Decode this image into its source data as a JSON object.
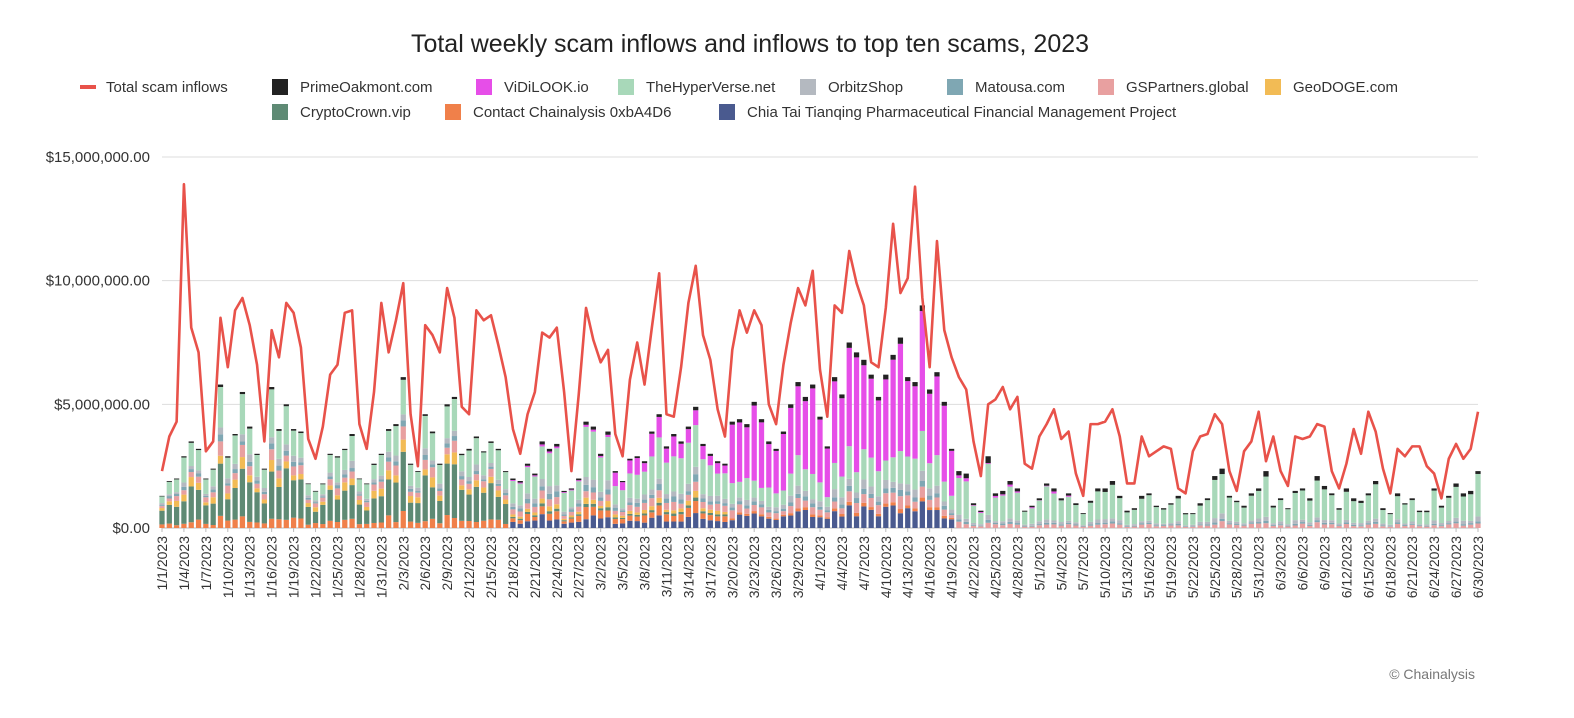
{
  "chart_data": {
    "type": "bar",
    "title": "Total weekly scam inflows and inflows to top ten scams, 2023",
    "credit": "© Chainalysis",
    "xlabel": "",
    "ylabel": "",
    "ylim": [
      0,
      15000000
    ],
    "y_ticks": [
      {
        "value": 0,
        "label": "$0.00"
      },
      {
        "value": 5000000,
        "label": "$5,000,000.00"
      },
      {
        "value": 10000000,
        "label": "$10,000,000.00"
      },
      {
        "value": 15000000,
        "label": "$15,000,000.00"
      }
    ],
    "x_tick_labels": [
      "1/1/2023",
      "1/4/2023",
      "1/7/2023",
      "1/10/2023",
      "1/13/2023",
      "1/16/2023",
      "1/19/2023",
      "1/22/2023",
      "1/25/2023",
      "1/28/2023",
      "1/31/2023",
      "2/3/2023",
      "2/6/2023",
      "2/9/2023",
      "2/12/2023",
      "2/15/2023",
      "2/18/2023",
      "2/21/2023",
      "2/24/2023",
      "2/27/2023",
      "3/2/2023",
      "3/5/2023",
      "3/8/2023",
      "3/11/2023",
      "3/14/2023",
      "3/17/2023",
      "3/20/2023",
      "3/23/2023",
      "3/26/2023",
      "3/29/2023",
      "4/1/2023",
      "4/4/2023",
      "4/7/2023",
      "4/10/2023",
      "4/13/2023",
      "4/16/2023",
      "4/19/2023",
      "4/22/2023",
      "4/25/2023",
      "4/28/2023",
      "5/1/2023",
      "5/4/2023",
      "5/7/2023",
      "5/10/2023",
      "5/13/2023",
      "5/16/2023",
      "5/19/2023",
      "5/22/2023",
      "5/25/2023",
      "5/28/2023",
      "5/31/2023",
      "6/3/2023",
      "6/6/2023",
      "6/9/2023",
      "6/12/2023",
      "6/15/2023",
      "6/18/2023",
      "6/21/2023",
      "6/24/2023",
      "6/27/2023",
      "6/30/2023"
    ],
    "start_date": "1/1/2023",
    "end_date": "6/30/2023",
    "line_series": {
      "name": "Total scam inflows",
      "color": "#e8524a",
      "key_points": [
        [
          1,
          2.3
        ],
        [
          2,
          3.7
        ],
        [
          3,
          4.3
        ],
        [
          4,
          13.9
        ],
        [
          5,
          8.1
        ],
        [
          6,
          7.1
        ],
        [
          7,
          3.1
        ],
        [
          8,
          3.5
        ],
        [
          9,
          8.5
        ],
        [
          10,
          6.5
        ],
        [
          11,
          8.8
        ],
        [
          12,
          9.3
        ],
        [
          13,
          8.2
        ],
        [
          14,
          6.6
        ],
        [
          15,
          3.5
        ],
        [
          16,
          8.0
        ],
        [
          17,
          6.9
        ],
        [
          18,
          9.1
        ],
        [
          19,
          8.7
        ],
        [
          20,
          7.3
        ],
        [
          21,
          3.6
        ],
        [
          22,
          2.8
        ],
        [
          23,
          4.1
        ],
        [
          24,
          6.2
        ],
        [
          25,
          6.6
        ],
        [
          26,
          8.7
        ],
        [
          27,
          8.8
        ],
        [
          28,
          4.2
        ],
        [
          29,
          3.2
        ],
        [
          30,
          5.5
        ],
        [
          31,
          9.1
        ],
        [
          32,
          7.1
        ],
        [
          33,
          8.4
        ],
        [
          34,
          9.9
        ],
        [
          35,
          4.6
        ],
        [
          36,
          2.5
        ],
        [
          37,
          8.2
        ],
        [
          38,
          7.8
        ],
        [
          39,
          7.1
        ],
        [
          40,
          9.7
        ],
        [
          41,
          8.5
        ],
        [
          42,
          4.9
        ],
        [
          43,
          4.6
        ],
        [
          44,
          8.8
        ],
        [
          45,
          8.4
        ],
        [
          46,
          8.6
        ],
        [
          47,
          7.4
        ],
        [
          48,
          6.1
        ],
        [
          49,
          4.0
        ],
        [
          50,
          3.0
        ],
        [
          51,
          4.6
        ],
        [
          52,
          5.5
        ],
        [
          53,
          7.9
        ],
        [
          54,
          7.7
        ],
        [
          55,
          8.1
        ],
        [
          56,
          5.5
        ],
        [
          57,
          2.3
        ],
        [
          58,
          5.4
        ],
        [
          59,
          8.9
        ],
        [
          60,
          7.6
        ],
        [
          61,
          6.7
        ],
        [
          62,
          7.2
        ],
        [
          63,
          3.8
        ],
        [
          64,
          2.9
        ],
        [
          65,
          6.0
        ],
        [
          66,
          7.5
        ],
        [
          67,
          5.8
        ],
        [
          68,
          8.1
        ],
        [
          69,
          10.3
        ],
        [
          70,
          4.6
        ],
        [
          71,
          4.5
        ],
        [
          72,
          6.5
        ],
        [
          73,
          9.1
        ],
        [
          74,
          10.6
        ],
        [
          75,
          7.8
        ],
        [
          76,
          6.8
        ],
        [
          77,
          4.8
        ],
        [
          78,
          3.7
        ],
        [
          79,
          7.2
        ],
        [
          80,
          8.8
        ],
        [
          81,
          7.9
        ],
        [
          82,
          8.8
        ],
        [
          83,
          8.2
        ],
        [
          84,
          5.0
        ],
        [
          85,
          4.2
        ],
        [
          86,
          6.6
        ],
        [
          87,
          8.3
        ],
        [
          88,
          9.7
        ],
        [
          89,
          9.0
        ],
        [
          90,
          10.4
        ],
        [
          91,
          6.4
        ],
        [
          92,
          4.5
        ],
        [
          93,
          9.0
        ],
        [
          94,
          8.7
        ],
        [
          95,
          11.2
        ],
        [
          96,
          9.9
        ],
        [
          97,
          9.0
        ],
        [
          98,
          6.7
        ],
        [
          99,
          6.5
        ],
        [
          100,
          8.9
        ],
        [
          101,
          12.3
        ],
        [
          102,
          9.5
        ],
        [
          103,
          10.1
        ],
        [
          104,
          13.8
        ],
        [
          105,
          9.3
        ],
        [
          106,
          6.5
        ],
        [
          107,
          11.6
        ],
        [
          108,
          8.0
        ],
        [
          109,
          6.9
        ],
        [
          110,
          6.1
        ],
        [
          111,
          5.6
        ],
        [
          112,
          3.5
        ],
        [
          113,
          2.1
        ],
        [
          114,
          5.0
        ],
        [
          115,
          5.2
        ],
        [
          116,
          5.7
        ],
        [
          117,
          4.8
        ],
        [
          118,
          5.3
        ],
        [
          119,
          2.6
        ],
        [
          120,
          2.4
        ],
        [
          121,
          3.7
        ],
        [
          122,
          4.2
        ],
        [
          123,
          4.8
        ],
        [
          124,
          3.6
        ],
        [
          125,
          3.9
        ],
        [
          126,
          2.2
        ],
        [
          127,
          1.3
        ],
        [
          128,
          4.2
        ],
        [
          129,
          4.2
        ],
        [
          130,
          4.3
        ],
        [
          131,
          4.8
        ],
        [
          132,
          3.7
        ],
        [
          133,
          1.8
        ],
        [
          134,
          1.8
        ],
        [
          135,
          3.7
        ],
        [
          136,
          2.9
        ],
        [
          137,
          3.1
        ],
        [
          138,
          3.3
        ],
        [
          139,
          3.2
        ],
        [
          140,
          1.6
        ],
        [
          141,
          1.4
        ],
        [
          142,
          3.1
        ],
        [
          143,
          3.7
        ],
        [
          144,
          3.8
        ],
        [
          145,
          4.6
        ],
        [
          146,
          4.2
        ],
        [
          147,
          2.3
        ],
        [
          148,
          1.5
        ],
        [
          149,
          3.1
        ],
        [
          150,
          3.5
        ],
        [
          151,
          4.7
        ],
        [
          152,
          2.7
        ],
        [
          153,
          3.7
        ],
        [
          154,
          2.3
        ],
        [
          155,
          1.7
        ],
        [
          156,
          3.7
        ],
        [
          157,
          3.6
        ],
        [
          158,
          3.7
        ],
        [
          159,
          4.2
        ],
        [
          160,
          4.1
        ],
        [
          161,
          2.3
        ],
        [
          162,
          1.6
        ],
        [
          163,
          2.6
        ],
        [
          164,
          4.0
        ],
        [
          165,
          3.0
        ],
        [
          166,
          4.7
        ],
        [
          167,
          3.9
        ],
        [
          168,
          2.4
        ],
        [
          169,
          1.4
        ],
        [
          170,
          3.2
        ],
        [
          171,
          2.9
        ],
        [
          172,
          3.3
        ],
        [
          173,
          3.3
        ],
        [
          174,
          2.5
        ],
        [
          175,
          2.2
        ],
        [
          176,
          1.2
        ],
        [
          177,
          2.8
        ],
        [
          178,
          3.4
        ],
        [
          179,
          2.8
        ],
        [
          180,
          3.2
        ],
        [
          181,
          4.7
        ]
      ],
      "unit": "million USD per date index (1 = 1/1/2023)"
    },
    "bar_series": [
      {
        "name": "PrimeOakmont.com",
        "color": "#222222"
      },
      {
        "name": "ViDiLOOK.io",
        "color": "#e64ee8"
      },
      {
        "name": "TheHyperVerse.net",
        "color": "#a8d8b9"
      },
      {
        "name": "OrbitzShop",
        "color": "#b4b9c0"
      },
      {
        "name": "Matousa.com",
        "color": "#7fa7b3"
      },
      {
        "name": "GSPartners.global",
        "color": "#e8a0a0"
      },
      {
        "name": "GeoDOGE.com",
        "color": "#f2bb55"
      },
      {
        "name": "CryptoCrown.vip",
        "color": "#5e8a74"
      },
      {
        "name": "Contact Chainalysis 0xbA4D6",
        "color": "#f0804a"
      },
      {
        "name": "Chia Tai Tianqing Pharmaceutical Financial Management Project",
        "color": "#4a5a8f"
      }
    ],
    "bar_totals_key_points": [
      [
        1,
        1.3
      ],
      [
        2,
        1.9
      ],
      [
        3,
        2.0
      ],
      [
        4,
        2.9
      ],
      [
        5,
        3.5
      ],
      [
        6,
        3.2
      ],
      [
        7,
        2.0
      ],
      [
        8,
        2.4
      ],
      [
        9,
        5.8
      ],
      [
        10,
        2.9
      ],
      [
        11,
        3.8
      ],
      [
        12,
        5.5
      ],
      [
        13,
        4.1
      ],
      [
        14,
        3.0
      ],
      [
        15,
        2.4
      ],
      [
        16,
        5.7
      ],
      [
        17,
        4.0
      ],
      [
        18,
        5.0
      ],
      [
        19,
        4.0
      ],
      [
        20,
        3.9
      ],
      [
        21,
        1.8
      ],
      [
        22,
        1.5
      ],
      [
        23,
        1.8
      ],
      [
        24,
        3.0
      ],
      [
        25,
        2.9
      ],
      [
        26,
        3.2
      ],
      [
        27,
        3.8
      ],
      [
        28,
        2.0
      ],
      [
        29,
        1.8
      ],
      [
        30,
        2.6
      ],
      [
        31,
        3.0
      ],
      [
        32,
        4.0
      ],
      [
        33,
        4.2
      ],
      [
        34,
        6.1
      ],
      [
        35,
        2.6
      ],
      [
        36,
        2.3
      ],
      [
        37,
        4.6
      ],
      [
        38,
        3.9
      ],
      [
        39,
        2.6
      ],
      [
        40,
        5.0
      ],
      [
        41,
        5.3
      ],
      [
        42,
        3.0
      ],
      [
        43,
        3.2
      ],
      [
        44,
        3.7
      ],
      [
        45,
        3.1
      ],
      [
        46,
        3.5
      ],
      [
        47,
        3.2
      ],
      [
        48,
        2.3
      ],
      [
        49,
        2.0
      ],
      [
        50,
        1.9
      ],
      [
        51,
        2.6
      ],
      [
        52,
        2.2
      ],
      [
        53,
        3.5
      ],
      [
        54,
        3.2
      ],
      [
        55,
        3.4
      ],
      [
        56,
        1.5
      ],
      [
        57,
        1.6
      ],
      [
        58,
        2.0
      ],
      [
        59,
        4.3
      ],
      [
        60,
        4.1
      ],
      [
        61,
        3.0
      ],
      [
        62,
        3.9
      ],
      [
        63,
        2.3
      ],
      [
        64,
        1.9
      ],
      [
        65,
        2.8
      ],
      [
        66,
        2.9
      ],
      [
        67,
        2.7
      ],
      [
        68,
        3.9
      ],
      [
        69,
        4.6
      ],
      [
        70,
        3.3
      ],
      [
        71,
        3.8
      ],
      [
        72,
        3.5
      ],
      [
        73,
        4.1
      ],
      [
        74,
        4.9
      ],
      [
        75,
        3.4
      ],
      [
        76,
        3.0
      ],
      [
        77,
        2.7
      ],
      [
        78,
        2.6
      ],
      [
        79,
        4.3
      ],
      [
        80,
        4.4
      ],
      [
        81,
        4.2
      ],
      [
        82,
        5.1
      ],
      [
        83,
        4.4
      ],
      [
        84,
        3.5
      ],
      [
        85,
        3.2
      ],
      [
        86,
        3.9
      ],
      [
        87,
        5.0
      ],
      [
        88,
        5.9
      ],
      [
        89,
        5.3
      ],
      [
        90,
        5.8
      ],
      [
        91,
        4.5
      ],
      [
        92,
        3.3
      ],
      [
        93,
        6.1
      ],
      [
        94,
        5.4
      ],
      [
        95,
        7.5
      ],
      [
        96,
        7.1
      ],
      [
        97,
        6.8
      ],
      [
        98,
        6.2
      ],
      [
        99,
        5.3
      ],
      [
        100,
        6.2
      ],
      [
        101,
        7.0
      ],
      [
        102,
        7.7
      ],
      [
        103,
        6.1
      ],
      [
        104,
        5.9
      ],
      [
        105,
        9.0
      ],
      [
        106,
        5.6
      ],
      [
        107,
        6.3
      ],
      [
        108,
        5.1
      ],
      [
        109,
        3.2
      ],
      [
        110,
        2.3
      ],
      [
        111,
        2.2
      ],
      [
        112,
        1.0
      ],
      [
        113,
        0.7
      ],
      [
        114,
        2.9
      ],
      [
        115,
        1.4
      ],
      [
        116,
        1.5
      ],
      [
        117,
        1.9
      ],
      [
        118,
        1.6
      ],
      [
        119,
        0.7
      ],
      [
        120,
        0.9
      ],
      [
        121,
        1.2
      ],
      [
        122,
        1.8
      ],
      [
        123,
        1.6
      ],
      [
        124,
        1.2
      ],
      [
        125,
        1.4
      ],
      [
        126,
        1.0
      ],
      [
        127,
        0.6
      ],
      [
        128,
        1.1
      ],
      [
        129,
        1.6
      ],
      [
        130,
        1.6
      ],
      [
        131,
        1.9
      ],
      [
        132,
        1.3
      ],
      [
        133,
        0.7
      ],
      [
        134,
        0.8
      ],
      [
        135,
        1.3
      ],
      [
        136,
        1.4
      ],
      [
        137,
        0.9
      ],
      [
        138,
        0.8
      ],
      [
        139,
        1.0
      ],
      [
        140,
        1.3
      ],
      [
        141,
        0.6
      ],
      [
        142,
        0.6
      ],
      [
        143,
        1.0
      ],
      [
        144,
        1.2
      ],
      [
        145,
        2.1
      ],
      [
        146,
        2.4
      ],
      [
        147,
        1.3
      ],
      [
        148,
        1.1
      ],
      [
        149,
        0.9
      ],
      [
        150,
        1.4
      ],
      [
        151,
        1.6
      ],
      [
        152,
        2.3
      ],
      [
        153,
        0.9
      ],
      [
        154,
        1.2
      ],
      [
        155,
        0.8
      ],
      [
        156,
        1.5
      ],
      [
        157,
        1.6
      ],
      [
        158,
        1.2
      ],
      [
        159,
        2.1
      ],
      [
        160,
        1.7
      ],
      [
        161,
        1.4
      ],
      [
        162,
        0.8
      ],
      [
        163,
        1.6
      ],
      [
        164,
        1.2
      ],
      [
        165,
        1.1
      ],
      [
        166,
        1.4
      ],
      [
        167,
        1.9
      ],
      [
        168,
        0.8
      ],
      [
        169,
        0.6
      ],
      [
        170,
        1.4
      ],
      [
        171,
        1.0
      ],
      [
        172,
        1.2
      ],
      [
        173,
        0.7
      ],
      [
        174,
        0.7
      ],
      [
        175,
        1.6
      ],
      [
        176,
        0.9
      ],
      [
        177,
        1.3
      ],
      [
        178,
        1.8
      ],
      [
        179,
        1.4
      ],
      [
        180,
        1.5
      ],
      [
        181,
        2.3
      ]
    ]
  }
}
